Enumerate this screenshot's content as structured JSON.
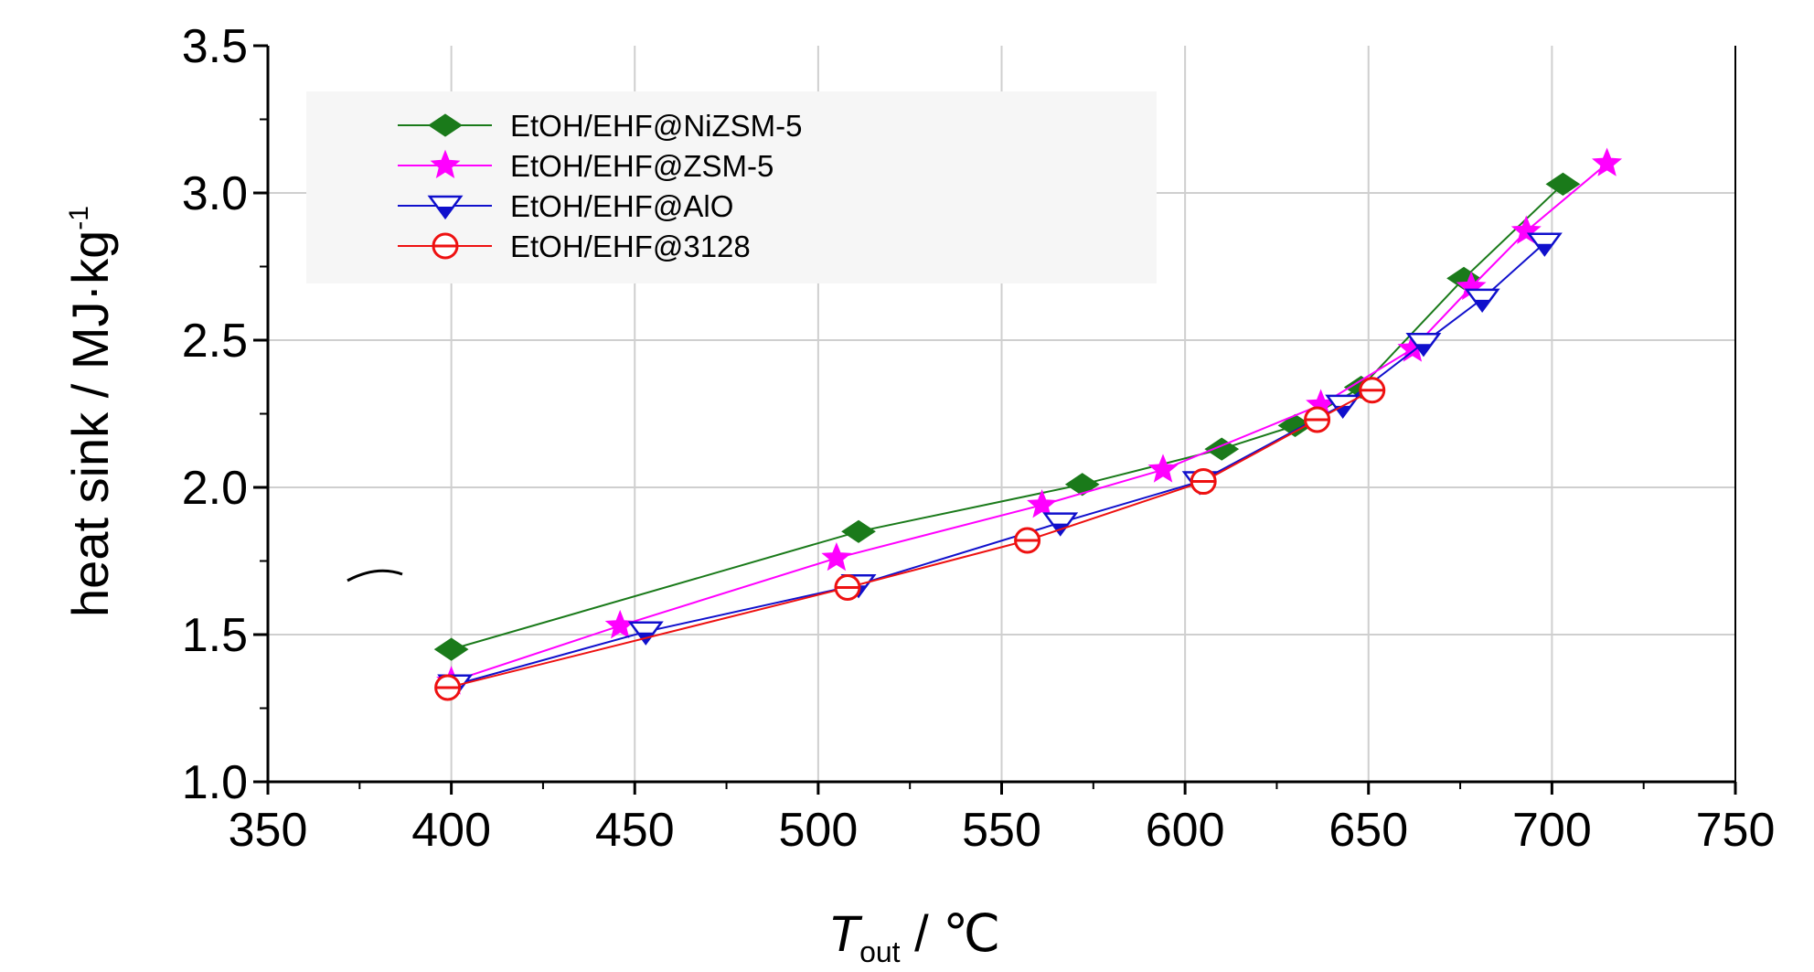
{
  "chart_data": {
    "type": "line",
    "xlabel": "T",
    "xlabel_sub": "out",
    "xlabel_unit": " / ℃",
    "ylabel": "heat sink / MJ·kg",
    "ylabel_sup": "-1",
    "xlim": [
      350,
      750
    ],
    "ylim": [
      1.0,
      3.5
    ],
    "xticks": [
      "350",
      "400",
      "450",
      "500",
      "550",
      "600",
      "650",
      "700",
      "750"
    ],
    "yticks": [
      "1.0",
      "1.5",
      "2.0",
      "2.5",
      "3.0",
      "3.5"
    ],
    "grid": true,
    "legend_position": "top-left",
    "series": [
      {
        "name": "EtOH/EHF@NiZSM-5",
        "color": "#1a7a1a",
        "marker": "diamond",
        "points": [
          [
            400,
            1.45
          ],
          [
            511,
            1.85
          ],
          [
            572,
            2.01
          ],
          [
            610,
            2.13
          ],
          [
            630,
            2.21
          ],
          [
            648,
            2.34
          ],
          [
            676,
            2.71
          ],
          [
            703,
            3.03
          ]
        ]
      },
      {
        "name": "EtOH/EHF@ZSM-5",
        "color": "#ff00ff",
        "marker": "star",
        "points": [
          [
            400,
            1.34
          ],
          [
            446,
            1.53
          ],
          [
            505,
            1.76
          ],
          [
            561,
            1.94
          ],
          [
            594,
            2.06
          ],
          [
            637,
            2.28
          ],
          [
            662,
            2.47
          ],
          [
            678,
            2.68
          ],
          [
            693,
            2.87
          ],
          [
            715,
            3.1
          ]
        ]
      },
      {
        "name": "EtOH/EHF@AlO",
        "color": "#1010cc",
        "marker": "triangle-down",
        "points": [
          [
            401,
            1.33
          ],
          [
            453,
            1.51
          ],
          [
            511,
            1.67
          ],
          [
            566,
            1.88
          ],
          [
            604,
            2.02
          ],
          [
            643,
            2.28
          ],
          [
            665,
            2.49
          ],
          [
            681,
            2.64
          ],
          [
            698,
            2.83
          ]
        ]
      },
      {
        "name": "EtOH/EHF@3128",
        "color": "#ee1111",
        "marker": "circle",
        "points": [
          [
            399,
            1.32
          ],
          [
            508,
            1.66
          ],
          [
            557,
            1.82
          ],
          [
            605,
            2.02
          ],
          [
            636,
            2.23
          ],
          [
            651,
            2.33
          ]
        ]
      }
    ]
  }
}
